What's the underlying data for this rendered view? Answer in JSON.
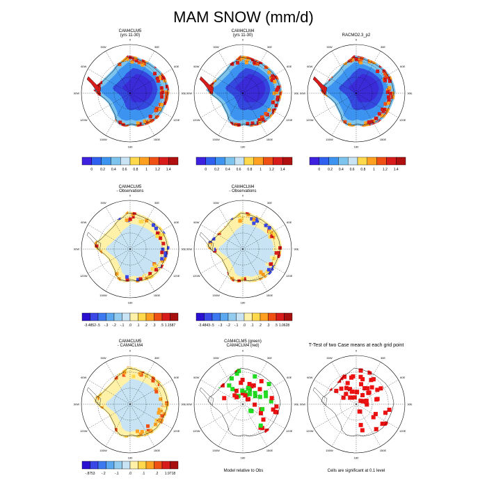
{
  "title": "MAM SNOW (mm/d)",
  "rows": [
    {
      "panels": [
        {
          "id": "p11",
          "title_lines": [
            "CAM4CLM5",
            "(yrs 11-30)"
          ],
          "field": "full"
        },
        {
          "id": "p12",
          "title_lines": [
            "CAM4CLM4",
            "(yrs 11-30)"
          ],
          "field": "full"
        },
        {
          "id": "p13",
          "title_lines": [
            "RACMO2.3_p2"
          ],
          "field": "full"
        }
      ]
    },
    {
      "panels": [
        {
          "id": "p21",
          "title_lines": [
            "CAM4CLM5",
            "- Observations"
          ],
          "field": "diff"
        },
        {
          "id": "p22",
          "title_lines": [
            "CAM4CLM4",
            "- Observations"
          ],
          "field": "diff"
        }
      ]
    },
    {
      "panels": [
        {
          "id": "p31",
          "title_lines": [
            "CAM4CLM5",
            "- CAM4CLM4"
          ],
          "field": "diff2"
        },
        {
          "id": "p32",
          "title_lines": [
            "CAM4CLM5 (green)",
            "CAM4CLM4 (red)"
          ],
          "field": "binary"
        },
        {
          "id": "p33",
          "title_lines": [
            "T-Test of two Case means at each grid point"
          ],
          "field": "ttest"
        }
      ]
    }
  ],
  "lon_labels": [
    "0",
    "30E",
    "60E",
    "90E",
    "120E",
    "150E",
    "180",
    "150W",
    "120W",
    "90W",
    "60W",
    "30W"
  ],
  "colorbars": {
    "full": {
      "ticks": [
        "0",
        "0.2",
        "0.4",
        "0.6",
        "0.8",
        "1",
        "1.2",
        "1.4"
      ],
      "colors": [
        "#3d20e0",
        "#3060f0",
        "#3c94f0",
        "#7cc4ee",
        "#c8e4f4",
        "#ffd84c",
        "#ffa020",
        "#f05014",
        "#d81c1c",
        "#b01010"
      ]
    },
    "diff1": {
      "ticks": [
        "-3.4852",
        "-.5",
        "-.3",
        "-.2",
        "-.1",
        ".0",
        ".1",
        ".2",
        ".3",
        ".5",
        "1.1587"
      ],
      "colors": [
        "#2a10d0",
        "#3a48e8",
        "#3c78f0",
        "#5ca8f0",
        "#94ccf0",
        "#c8e4f4",
        "#fff2a8",
        "#ffd84c",
        "#ffa020",
        "#f05014",
        "#d81c1c",
        "#a81010"
      ]
    },
    "diff2": {
      "ticks": [
        "-3.4843",
        "-.5",
        "-.3",
        "-.2",
        "-.1",
        ".0",
        ".1",
        ".2",
        ".3",
        ".5",
        "1.0628"
      ],
      "colors": [
        "#2a10d0",
        "#3a48e8",
        "#3c78f0",
        "#5ca8f0",
        "#94ccf0",
        "#c8e4f4",
        "#fff2a8",
        "#ffd84c",
        "#ffa020",
        "#f05014",
        "#d81c1c",
        "#a81010"
      ]
    },
    "diff3": {
      "ticks": [
        "-.8753",
        "-.2",
        "-.1",
        ".0",
        ".1",
        ".2",
        "1.9718"
      ],
      "colors": [
        "#2a10d0",
        "#3a48e8",
        "#3c78f0",
        "#5ca8f0",
        "#94ccf0",
        "#c8e4f4",
        "#fff2a8",
        "#ffd84c",
        "#ffa020",
        "#f05014",
        "#d81c1c",
        "#a81010"
      ]
    }
  },
  "notes": {
    "model_relative": "Model relative to Obs",
    "significance": "Cells are significant at 0.1 level"
  },
  "colors": {
    "green": "#22dd22",
    "red": "#ee1111"
  }
}
